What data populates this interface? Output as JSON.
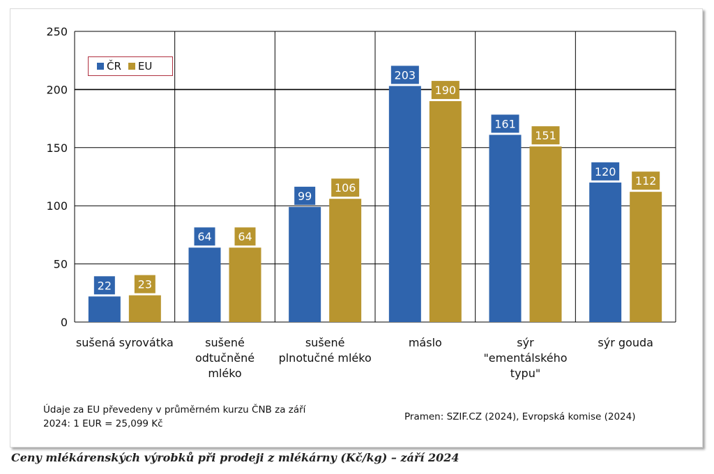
{
  "chart_data": {
    "type": "bar",
    "categories": [
      [
        "sušená syrovátka"
      ],
      [
        "sušené",
        "odtučněné",
        "mléko"
      ],
      [
        "sušené",
        "plnotučné mléko"
      ],
      [
        "máslo"
      ],
      [
        "sýr",
        "\"ementálského",
        "typu\""
      ],
      [
        "sýr gouda"
      ]
    ],
    "series": [
      {
        "name": "ČR",
        "color": "#2f64ad",
        "values": [
          22,
          64,
          99,
          203,
          161,
          120
        ]
      },
      {
        "name": "EU",
        "color": "#b8952f",
        "values": [
          23,
          64,
          106,
          190,
          151,
          112
        ]
      }
    ],
    "yticks": [
      "0",
      "50",
      "100",
      "150",
      "200",
      "250"
    ],
    "ylim": [
      0,
      250
    ],
    "grid": true,
    "legend_position": "top-left"
  },
  "notes": {
    "left_line1": "Údaje za EU převedeny v průměrném kurzu  ČNB za září",
    "left_line2": "2024: 1 EUR = 25,099 Kč",
    "source": "Pramen: SZIF.CZ (2024), Evropská komise (2024)"
  },
  "caption": "Ceny mlékárenských výrobků při prodeji z mlékárny (Kč/kg) – září 2024"
}
